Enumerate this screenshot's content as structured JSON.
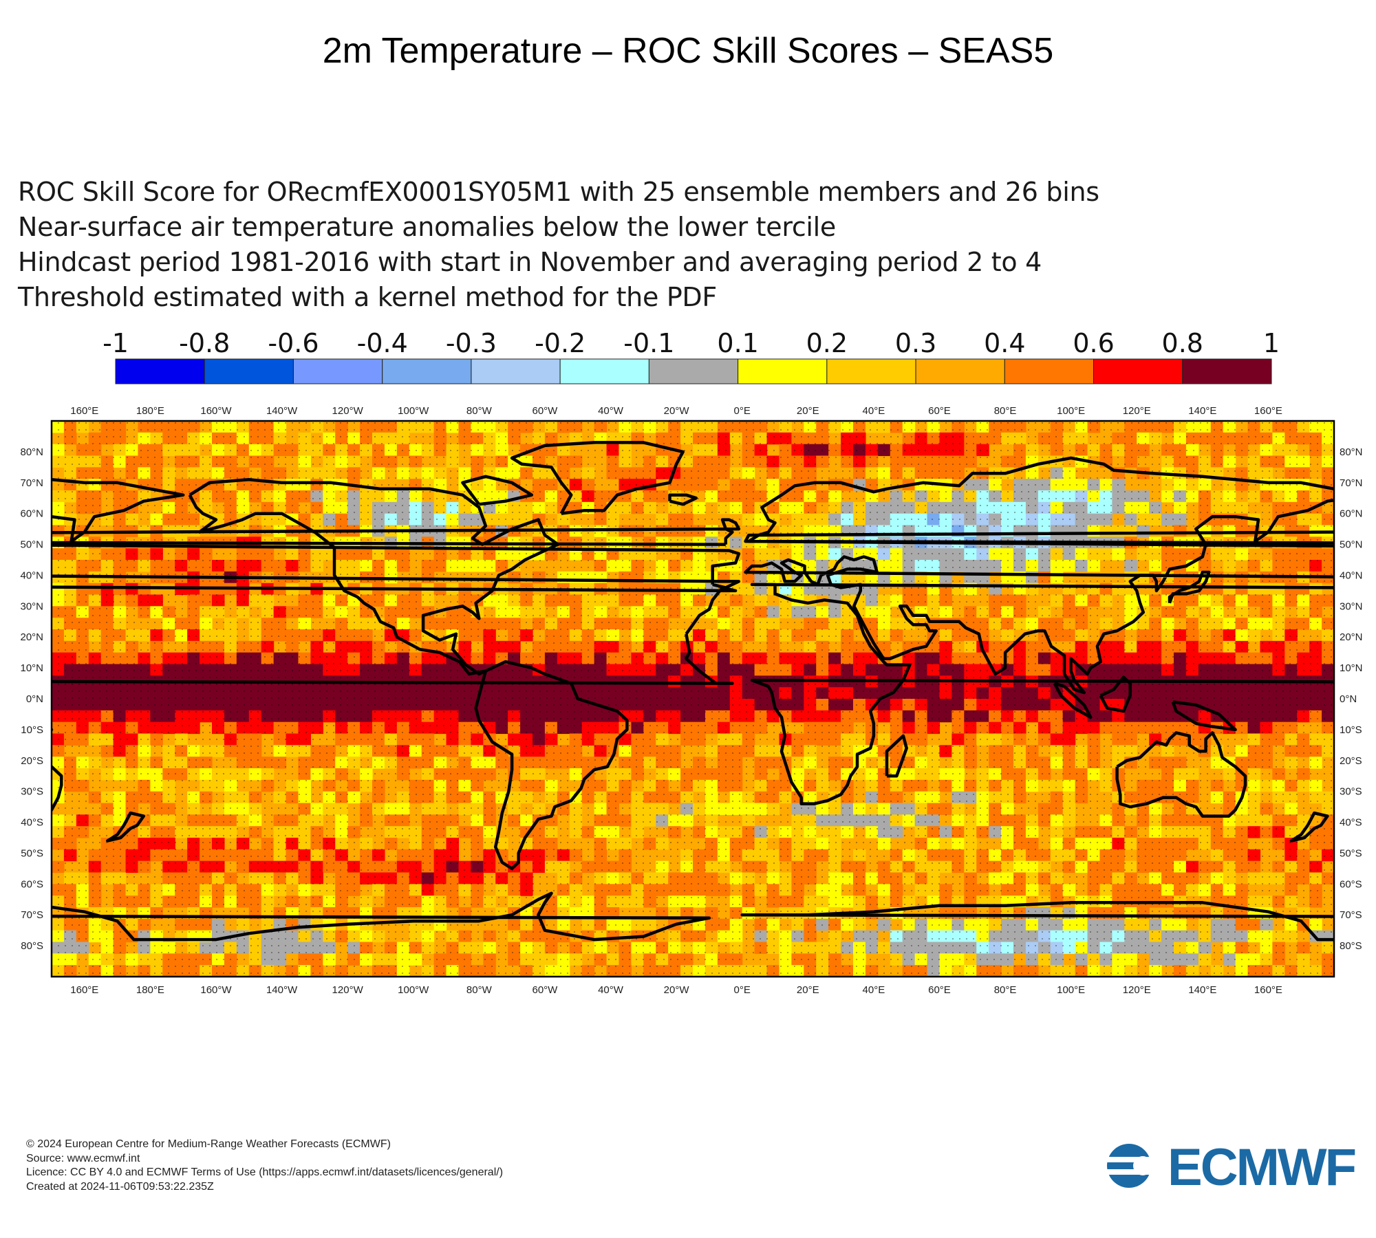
{
  "title": "2m Temperature – ROC Skill Scores – SEAS5",
  "subtitle_lines": [
    "ROC Skill Score for ORecmfEX0001SY05M1 with 25 ensemble members and 26 bins",
    "Near-surface air temperature anomalies below the lower tercile",
    "Hindcast period 1981-2016 with start in November and averaging period  2 to  4",
    "Threshold estimated with a kernel method for the PDF"
  ],
  "legend": {
    "tick_labels": [
      "-1",
      "-0.8",
      "-0.6",
      "-0.4",
      "-0.3",
      "-0.2",
      "-0.1",
      "0.1",
      "0.2",
      "0.3",
      "0.4",
      "0.6",
      "0.8",
      "1"
    ],
    "colors": [
      "#0000ee",
      "#0055dd",
      "#7799ff",
      "#77aaee",
      "#aaccf5",
      "#aaffff",
      "#aaaaaa",
      "#ffff00",
      "#ffcc00",
      "#ffaa00",
      "#ff7700",
      "#ff0000",
      "#770022"
    ]
  },
  "map": {
    "lon_labels": [
      "160°E",
      "180°E",
      "160°W",
      "140°W",
      "120°W",
      "100°W",
      "80°W",
      "60°W",
      "40°W",
      "20°W",
      "0°E",
      "20°E",
      "40°E",
      "60°E",
      "80°E",
      "100°E",
      "120°E",
      "140°E",
      "160°E"
    ],
    "lat_labels": [
      "80°N",
      "70°N",
      "60°N",
      "50°N",
      "40°N",
      "30°N",
      "20°N",
      "10°N",
      "0°N",
      "10°S",
      "20°S",
      "30°S",
      "40°S",
      "50°S",
      "60°S",
      "70°S",
      "80°S"
    ],
    "lon_range": [
      150,
      540
    ],
    "lat_range": [
      -90,
      90
    ]
  },
  "footer_lines": [
    "© 2024 European Centre for Medium-Range Weather Forecasts (ECMWF)",
    "Source: www.ecmwf.int",
    "Licence: CC BY 4.0 and ECMWF Terms of Use (https://apps.ecmwf.int/datasets/licences/general/)",
    "Created at 2024-11-06T09:53:22.235Z"
  ],
  "logo": {
    "text": "ECMWF",
    "color": "#1b6aa5"
  }
}
